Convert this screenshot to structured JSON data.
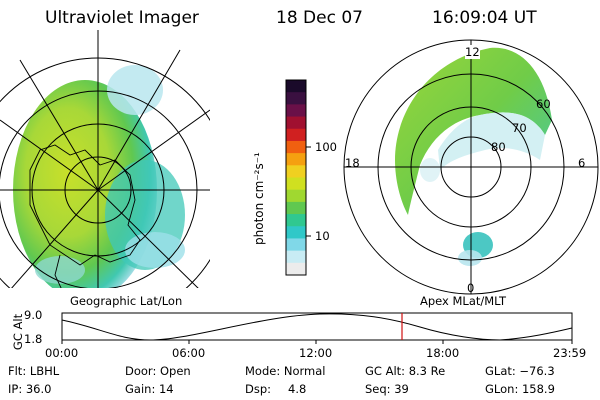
{
  "header": {
    "instrument": "Ultraviolet Imager",
    "date": "18 Dec 07",
    "time": "16:09:04 UT"
  },
  "colorbar": {
    "unit_label": "photon cm⁻²s⁻¹",
    "ticks": [
      "100",
      "10"
    ],
    "colors": [
      "#1a0a2a",
      "#3a1040",
      "#6a1048",
      "#a01030",
      "#d02020",
      "#f06010",
      "#f5a010",
      "#f0d020",
      "#d0e020",
      "#a0d830",
      "#60c850",
      "#30c890",
      "#30c8c8",
      "#80d8e8",
      "#c8ecf4",
      "#ececec"
    ]
  },
  "left_panel": {
    "caption": "Geographic Lat/Lon"
  },
  "right_panel": {
    "caption": "Apex MLat/MLT",
    "mlt_labels": {
      "top": "12",
      "left": "18",
      "right": "6",
      "bottom": "0"
    },
    "lat_labels": [
      "60",
      "70",
      "80"
    ]
  },
  "orbit_strip": {
    "axis_label": "GC Alt",
    "y_max": "9.0",
    "y_min": "1.8",
    "time_labels": [
      "00:00",
      "06:00",
      "12:00",
      "18:00",
      "23:59"
    ]
  },
  "info": {
    "filter": "Flt: LBHL",
    "door": "Door: Open",
    "mode": "Mode: Normal",
    "gc_alt": "GC Alt: 8.3 Re",
    "glat": "GLat: −76.3",
    "ip": "IP: 36.0",
    "gain": "Gain: 14",
    "dsp_label": "Dsp:",
    "dsp_value": "4.8",
    "seq": "Seq: 39",
    "glon": "GLon: 158.9"
  }
}
